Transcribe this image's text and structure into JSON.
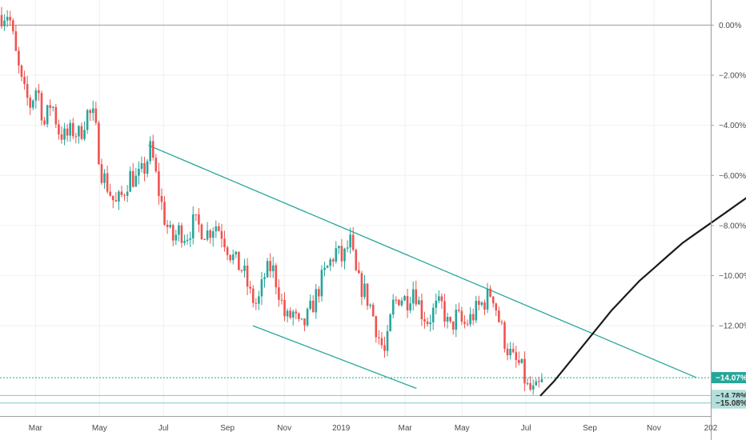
{
  "chart_data": {
    "type": "candlestick-percent",
    "title": "",
    "xlabel": "",
    "ylabel": "",
    "x_ticks": [
      "Mar",
      "May",
      "Jul",
      "Sep",
      "Nov",
      "2019",
      "Mar",
      "May",
      "Jul",
      "Sep",
      "Nov",
      "202"
    ],
    "y_ticks": [
      "0.00%",
      "−2.00%",
      "−4.00%",
      "−6.00%",
      "−8.00%",
      "−10.00%",
      "−12.00%"
    ],
    "y_range_pct": [
      -15.6,
      1.0
    ],
    "grid": true,
    "reference_line_pct": 0.0,
    "price_levels": [
      {
        "label": "−14.07%",
        "value": -14.07,
        "style": "dotted",
        "color": "#26a69a",
        "badge_bg": "#26a69a",
        "badge_fg": "#ffffff"
      },
      {
        "label": "−14.78%",
        "value": -14.78,
        "style": "solid",
        "color": "#7fc9c2",
        "badge_bg": "#b2dfdb",
        "badge_fg": "#333333"
      },
      {
        "label": "−15.08%",
        "value": -15.08,
        "style": "solid",
        "color": "#7fc9c2",
        "badge_bg": "#b2dfdb",
        "badge_fg": "#333333"
      }
    ],
    "trendlines": [
      {
        "name": "upper-channel",
        "points": [
          [
            0.209,
            -4.8
          ],
          [
            0.98,
            -14.07
          ]
        ]
      },
      {
        "name": "lower-channel",
        "points": [
          [
            0.356,
            -12.0
          ],
          [
            0.586,
            -14.5
          ]
        ]
      }
    ],
    "candle_path": [
      [
        0.0,
        0.4
      ],
      [
        0.01,
        0.5
      ],
      [
        0.02,
        -1.2
      ],
      [
        0.03,
        -2.6
      ],
      [
        0.04,
        -3.2
      ],
      [
        0.05,
        -2.4
      ],
      [
        0.06,
        -4.0
      ],
      [
        0.07,
        -3.0
      ],
      [
        0.08,
        -4.2
      ],
      [
        0.09,
        -4.5
      ],
      [
        0.1,
        -4.2
      ],
      [
        0.11,
        -4.4
      ],
      [
        0.12,
        -3.5
      ],
      [
        0.13,
        -3.7
      ],
      [
        0.14,
        -5.8
      ],
      [
        0.15,
        -6.5
      ],
      [
        0.16,
        -7.2
      ],
      [
        0.17,
        -6.8
      ],
      [
        0.18,
        -6.0
      ],
      [
        0.19,
        -6.2
      ],
      [
        0.2,
        -5.8
      ],
      [
        0.21,
        -4.9
      ],
      [
        0.22,
        -6.5
      ],
      [
        0.23,
        -7.8
      ],
      [
        0.24,
        -8.6
      ],
      [
        0.25,
        -8.2
      ],
      [
        0.26,
        -8.4
      ],
      [
        0.27,
        -7.9
      ],
      [
        0.28,
        -8.1
      ],
      [
        0.29,
        -8.3
      ],
      [
        0.3,
        -7.9
      ],
      [
        0.31,
        -8.3
      ],
      [
        0.32,
        -9.0
      ],
      [
        0.33,
        -9.5
      ],
      [
        0.34,
        -9.8
      ],
      [
        0.35,
        -10.8
      ],
      [
        0.36,
        -11.2
      ],
      [
        0.37,
        -10.0
      ],
      [
        0.38,
        -9.6
      ],
      [
        0.39,
        -10.6
      ],
      [
        0.4,
        -11.8
      ],
      [
        0.41,
        -11.5
      ],
      [
        0.42,
        -12.2
      ],
      [
        0.43,
        -11.7
      ],
      [
        0.44,
        -11.0
      ],
      [
        0.45,
        -10.2
      ],
      [
        0.46,
        -9.6
      ],
      [
        0.47,
        -9.0
      ],
      [
        0.48,
        -9.4
      ],
      [
        0.49,
        -8.6
      ],
      [
        0.5,
        -10.2
      ],
      [
        0.51,
        -10.6
      ],
      [
        0.52,
        -11.3
      ],
      [
        0.53,
        -12.4
      ],
      [
        0.54,
        -13.2
      ],
      [
        0.55,
        -11.2
      ],
      [
        0.56,
        -10.8
      ],
      [
        0.57,
        -11.0
      ],
      [
        0.58,
        -10.4
      ],
      [
        0.59,
        -11.4
      ],
      [
        0.6,
        -11.8
      ],
      [
        0.61,
        -11.3
      ],
      [
        0.62,
        -11.2
      ],
      [
        0.63,
        -12.2
      ],
      [
        0.64,
        -11.6
      ],
      [
        0.65,
        -12.0
      ],
      [
        0.66,
        -11.7
      ],
      [
        0.67,
        -11.3
      ],
      [
        0.68,
        -11.0
      ],
      [
        0.69,
        -10.6
      ],
      [
        0.7,
        -11.8
      ],
      [
        0.71,
        -12.8
      ],
      [
        0.72,
        -13.4
      ],
      [
        0.73,
        -13.6
      ],
      [
        0.74,
        -14.5
      ],
      [
        0.75,
        -14.7
      ],
      [
        0.76,
        -14.3
      ]
    ],
    "forecast_path": [
      [
        0.76,
        -14.8
      ],
      [
        0.78,
        -14.2
      ],
      [
        0.8,
        -13.5
      ],
      [
        0.82,
        -12.8
      ],
      [
        0.84,
        -12.1
      ],
      [
        0.86,
        -11.4
      ],
      [
        0.88,
        -10.8
      ],
      [
        0.9,
        -10.2
      ],
      [
        0.92,
        -9.7
      ],
      [
        0.94,
        -9.2
      ],
      [
        0.96,
        -8.7
      ],
      [
        0.98,
        -8.3
      ],
      [
        1.0,
        -7.9
      ],
      [
        1.02,
        -7.5
      ],
      [
        1.04,
        -7.1
      ],
      [
        1.06,
        -6.7
      ],
      [
        1.08,
        -6.3
      ],
      [
        1.1,
        -5.9
      ],
      [
        1.12,
        -5.3
      ],
      [
        1.14,
        -4.6
      ]
    ],
    "colors": {
      "up": "#26a69a",
      "down": "#ef5350",
      "forecast": "#1b1b1b",
      "trendline": "#26a69a",
      "grid": "#eef0f3",
      "axis": "#9aa0a6",
      "reference": "#9aa0a6"
    }
  }
}
